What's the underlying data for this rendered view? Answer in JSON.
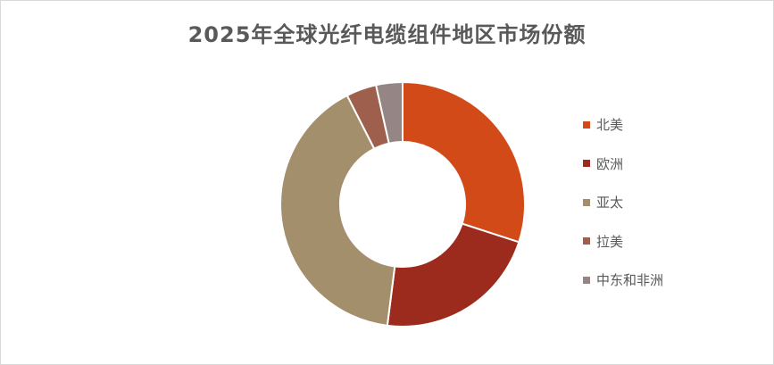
{
  "chart_data": {
    "type": "pie",
    "subtype": "donut",
    "title": "2025年全球光纤电缆组件地区市场份额",
    "categories": [
      "北美",
      "欧洲",
      "亚太",
      "拉美",
      "中东和非洲"
    ],
    "values": [
      30,
      22,
      40.5,
      4,
      3.5
    ],
    "unit": "%",
    "colors": [
      "#D24A17",
      "#9C2B1E",
      "#A38F6B",
      "#9E5F4D",
      "#958585"
    ],
    "legend": "right"
  }
}
